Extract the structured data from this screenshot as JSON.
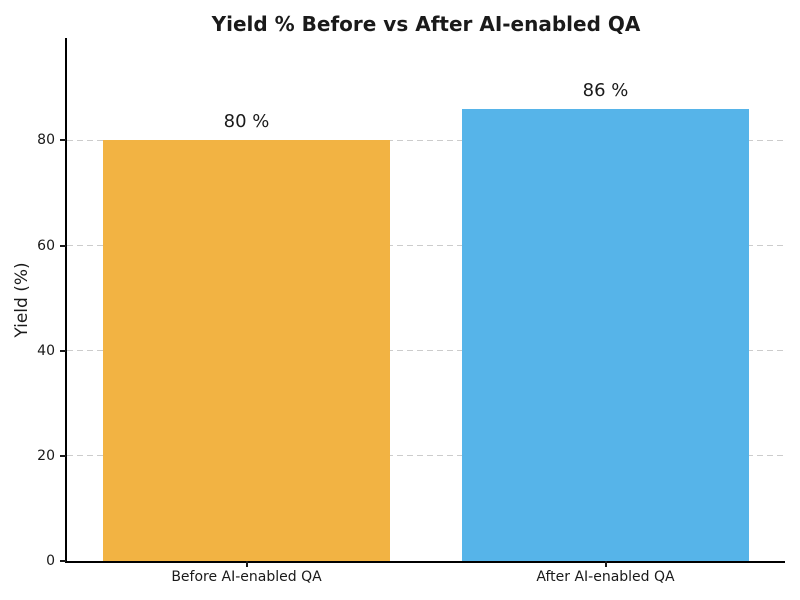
{
  "chart_data": {
    "type": "bar",
    "title": "Yield % Before vs After AI-enabled QA",
    "xlabel": "",
    "ylabel": "Yield (%)",
    "categories": [
      "Before AI-enabled QA",
      "After AI-enabled QA"
    ],
    "values": [
      80,
      86
    ],
    "bar_value_labels": [
      "80 %",
      "86 %"
    ],
    "bar_colors": [
      "#F2B343",
      "#56B4E9"
    ],
    "yticks": [
      0,
      20,
      40,
      60,
      80
    ],
    "ylim": [
      0,
      99.5
    ],
    "grid": {
      "axis": "y",
      "style": "dashed",
      "color": "#cccccc"
    },
    "legend_position": "none",
    "bar_width_fraction": 0.8,
    "colors": {
      "title": "#1a1a1a",
      "tick_text": "#1a1a1a",
      "spine": "#000000",
      "background": "#ffffff"
    }
  }
}
